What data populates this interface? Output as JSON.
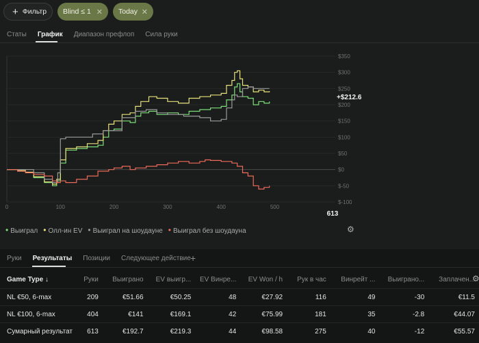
{
  "filters": {
    "add_label": "Фильтр",
    "chips": [
      {
        "label": "Blind ≤ 1"
      },
      {
        "label": "Today"
      }
    ]
  },
  "tabs": [
    "Статы",
    "График",
    "Диапазон префлоп",
    "Сила руки"
  ],
  "active_tab": "График",
  "chart_data": {
    "type": "line",
    "x_ticks": [
      "0",
      "100",
      "200",
      "300",
      "400",
      "500"
    ],
    "x_end_label": "613",
    "xlim": [
      0,
      613
    ],
    "y_ticks": [
      "$-100",
      "$-50",
      "$0",
      "$50",
      "$100",
      "$150",
      "$200",
      "$250",
      "$300",
      "$350"
    ],
    "ylim": [
      -100,
      350
    ],
    "end_value_label": "+$212.6",
    "series": [
      {
        "name": "Выиграл",
        "color": "#7ee07a",
        "points": [
          [
            0,
            0
          ],
          [
            20,
            -5
          ],
          [
            35,
            -10
          ],
          [
            50,
            -25
          ],
          [
            70,
            -40
          ],
          [
            85,
            -50
          ],
          [
            93,
            -35
          ],
          [
            100,
            20
          ],
          [
            110,
            60
          ],
          [
            130,
            65
          ],
          [
            150,
            70
          ],
          [
            170,
            75
          ],
          [
            180,
            100
          ],
          [
            190,
            120
          ],
          [
            200,
            125
          ],
          [
            215,
            150
          ],
          [
            230,
            145
          ],
          [
            240,
            165
          ],
          [
            250,
            175
          ],
          [
            265,
            180
          ],
          [
            280,
            170
          ],
          [
            300,
            175
          ],
          [
            320,
            170
          ],
          [
            340,
            180
          ],
          [
            360,
            185
          ],
          [
            380,
            190
          ],
          [
            400,
            195
          ],
          [
            410,
            215
          ],
          [
            420,
            230
          ],
          [
            425,
            255
          ],
          [
            430,
            265
          ],
          [
            435,
            240
          ],
          [
            440,
            225
          ],
          [
            450,
            220
          ],
          [
            460,
            200
          ],
          [
            470,
            210
          ],
          [
            480,
            205
          ],
          [
            490,
            210
          ]
        ]
      },
      {
        "name": "Олл-ин EV",
        "color": "#e8e27a",
        "points": [
          [
            0,
            0
          ],
          [
            20,
            -3
          ],
          [
            35,
            -8
          ],
          [
            50,
            -22
          ],
          [
            70,
            -38
          ],
          [
            85,
            -45
          ],
          [
            93,
            -30
          ],
          [
            100,
            30
          ],
          [
            110,
            65
          ],
          [
            130,
            70
          ],
          [
            150,
            80
          ],
          [
            170,
            90
          ],
          [
            180,
            120
          ],
          [
            190,
            140
          ],
          [
            200,
            150
          ],
          [
            215,
            170
          ],
          [
            230,
            175
          ],
          [
            240,
            195
          ],
          [
            250,
            210
          ],
          [
            265,
            225
          ],
          [
            280,
            220
          ],
          [
            300,
            210
          ],
          [
            320,
            205
          ],
          [
            340,
            220
          ],
          [
            360,
            225
          ],
          [
            380,
            230
          ],
          [
            400,
            235
          ],
          [
            410,
            260
          ],
          [
            420,
            275
          ],
          [
            425,
            300
          ],
          [
            430,
            305
          ],
          [
            435,
            280
          ],
          [
            440,
            260
          ],
          [
            450,
            255
          ],
          [
            460,
            240
          ],
          [
            470,
            245
          ],
          [
            480,
            240
          ],
          [
            490,
            242
          ]
        ]
      },
      {
        "name": "Выиграл на шоудауне",
        "color": "#9a9a9a",
        "points": [
          [
            0,
            0
          ],
          [
            30,
            0
          ],
          [
            50,
            -10
          ],
          [
            70,
            -30
          ],
          [
            85,
            -40
          ],
          [
            95,
            -10
          ],
          [
            100,
            95
          ],
          [
            110,
            100
          ],
          [
            130,
            100
          ],
          [
            160,
            110
          ],
          [
            180,
            120
          ],
          [
            200,
            120
          ],
          [
            215,
            160
          ],
          [
            240,
            180
          ],
          [
            260,
            185
          ],
          [
            280,
            175
          ],
          [
            300,
            170
          ],
          [
            330,
            165
          ],
          [
            360,
            160
          ],
          [
            380,
            150
          ],
          [
            400,
            155
          ],
          [
            410,
            190
          ],
          [
            420,
            215
          ],
          [
            425,
            230
          ],
          [
            430,
            225
          ],
          [
            440,
            250
          ],
          [
            450,
            255
          ],
          [
            460,
            250
          ],
          [
            490,
            250
          ]
        ]
      },
      {
        "name": "Выиграл без шоудауна",
        "color": "#ee6a5a",
        "points": [
          [
            0,
            0
          ],
          [
            20,
            -5
          ],
          [
            35,
            -10
          ],
          [
            50,
            -15
          ],
          [
            70,
            -20
          ],
          [
            85,
            -35
          ],
          [
            93,
            -40
          ],
          [
            100,
            -35
          ],
          [
            110,
            -40
          ],
          [
            130,
            -30
          ],
          [
            150,
            -20
          ],
          [
            170,
            -5
          ],
          [
            190,
            0
          ],
          [
            200,
            5
          ],
          [
            215,
            10
          ],
          [
            230,
            0
          ],
          [
            240,
            5
          ],
          [
            260,
            10
          ],
          [
            280,
            15
          ],
          [
            300,
            20
          ],
          [
            320,
            25
          ],
          [
            340,
            20
          ],
          [
            360,
            25
          ],
          [
            370,
            30
          ],
          [
            380,
            28
          ],
          [
            400,
            25
          ],
          [
            420,
            20
          ],
          [
            430,
            10
          ],
          [
            440,
            -10
          ],
          [
            450,
            -20
          ],
          [
            460,
            -50
          ],
          [
            470,
            -60
          ],
          [
            480,
            -55
          ],
          [
            490,
            -50
          ]
        ]
      }
    ]
  },
  "legend": [
    {
      "label": "Выиграл",
      "color": "#7ee07a"
    },
    {
      "label": "Олл-ин EV",
      "color": "#e8e27a"
    },
    {
      "label": "Выиграл на шоудауне",
      "color": "#9a9a9a"
    },
    {
      "label": "Выиграл без шоудауна",
      "color": "#ee6a5a"
    }
  ],
  "bottom_tabs": [
    "Руки",
    "Результаты",
    "Позиции",
    "Следующее действие"
  ],
  "bottom_active": "Результаты",
  "table": {
    "headers": [
      "Game Type ↓",
      "Руки",
      "Выиграно",
      "EV выигр...",
      "EV Винре...",
      "EV Won / h",
      "Рук в час",
      "Винрейт ...",
      "Выиграно...",
      "Заплачен..."
    ],
    "rows": [
      [
        "NL €50, 6-max",
        "209",
        "€51.66",
        "€50.25",
        "48",
        "€27.92",
        "116",
        "49",
        "-30",
        "€11.5"
      ],
      [
        "NL €100, 6-max",
        "404",
        "€141",
        "€169.1",
        "42",
        "€75.99",
        "181",
        "35",
        "-2.8",
        "€44.07"
      ],
      [
        "Сумарный результат",
        "613",
        "€192.7",
        "€219.3",
        "44",
        "€98.58",
        "275",
        "40",
        "-12",
        "€55.57"
      ]
    ]
  },
  "colors": {
    "positive": "#9be082",
    "negative": "#ff8a7a",
    "accent_chip": "#6a7848"
  }
}
